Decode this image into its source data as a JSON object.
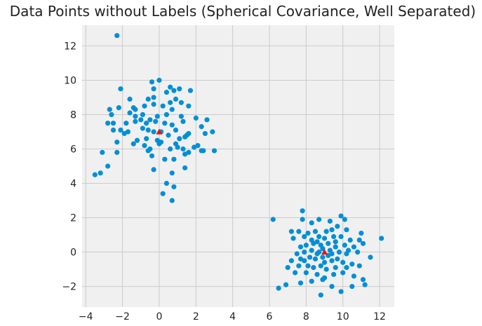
{
  "chart_data": {
    "type": "scatter",
    "title": "Data Points without Labels (Spherical Covariance, Well Separated)",
    "xlabel": "",
    "ylabel": "",
    "xlim": [
      -4.2,
      12.8
    ],
    "ylim": [
      -3.2,
      13.2
    ],
    "x_ticks": [
      -4,
      -2,
      0,
      2,
      4,
      6,
      8,
      10,
      12
    ],
    "y_ticks": [
      -2,
      0,
      2,
      4,
      6,
      8,
      10,
      12
    ],
    "x_tick_labels": [
      "−4",
      "−2",
      "0",
      "2",
      "4",
      "6",
      "8",
      "10",
      "12"
    ],
    "y_tick_labels": [
      "−2",
      "0",
      "2",
      "4",
      "6",
      "8",
      "10",
      "12"
    ],
    "grid": true,
    "colors": {
      "points": "#008fd5",
      "centers": "#e5141b",
      "grid": "#cbcbcb",
      "background": "#f0f0f0"
    },
    "series": [
      {
        "marker": "circle",
        "points": [
          [
            -2.3,
            12.6
          ],
          [
            -0.4,
            9.9
          ],
          [
            0.0,
            10.0
          ],
          [
            -2.1,
            9.5
          ],
          [
            0.6,
            9.6
          ],
          [
            1.1,
            9.5
          ],
          [
            1.7,
            9.4
          ],
          [
            -0.3,
            9.5
          ],
          [
            0.8,
            9.4
          ],
          [
            0.4,
            9.3
          ],
          [
            -1.6,
            8.9
          ],
          [
            -0.6,
            8.9
          ],
          [
            -0.3,
            9.0
          ],
          [
            0.9,
            8.9
          ],
          [
            1.2,
            8.7
          ],
          [
            0.6,
            8.7
          ],
          [
            -2.7,
            8.3
          ],
          [
            -2.6,
            8.0
          ],
          [
            -2.2,
            8.4
          ],
          [
            -1.4,
            8.4
          ],
          [
            -1.3,
            8.3
          ],
          [
            -0.8,
            8.5
          ],
          [
            -0.3,
            8.6
          ],
          [
            0.2,
            8.5
          ],
          [
            0.7,
            8.3
          ],
          [
            1.6,
            8.5
          ],
          [
            -1.6,
            8.1
          ],
          [
            -1.3,
            7.9
          ],
          [
            -0.9,
            8.0
          ],
          [
            -0.5,
            7.7
          ],
          [
            -0.1,
            7.9
          ],
          [
            0.4,
            8.0
          ],
          [
            1.2,
            7.9
          ],
          [
            2.0,
            7.8
          ],
          [
            2.6,
            7.7
          ],
          [
            -2.8,
            7.5
          ],
          [
            -2.5,
            7.5
          ],
          [
            -1.8,
            7.5
          ],
          [
            -1.3,
            7.6
          ],
          [
            -0.7,
            7.5
          ],
          [
            -0.2,
            7.6
          ],
          [
            0.3,
            7.5
          ],
          [
            0.7,
            7.4
          ],
          [
            1.3,
            7.6
          ],
          [
            2.3,
            7.3
          ],
          [
            -2.5,
            7.1
          ],
          [
            -2.1,
            7.1
          ],
          [
            -1.7,
            7.0
          ],
          [
            -0.9,
            7.2
          ],
          [
            -0.6,
            7.1
          ],
          [
            -0.3,
            7.0
          ],
          [
            0.1,
            7.0
          ],
          [
            0.5,
            6.8
          ],
          [
            0.9,
            7.1
          ],
          [
            1.6,
            6.9
          ],
          [
            2.5,
            6.9
          ],
          [
            2.9,
            7.0
          ],
          [
            -1.9,
            6.9
          ],
          [
            -1.2,
            6.5
          ],
          [
            -0.7,
            6.6
          ],
          [
            -0.1,
            6.5
          ],
          [
            0.1,
            6.4
          ],
          [
            1.1,
            6.6
          ],
          [
            1.4,
            6.7
          ],
          [
            2.1,
            6.2
          ],
          [
            -2.3,
            6.4
          ],
          [
            -1.4,
            6.3
          ],
          [
            -0.8,
            6.2
          ],
          [
            -0.5,
            6.0
          ],
          [
            0.6,
            6.0
          ],
          [
            1.0,
            6.1
          ],
          [
            1.3,
            6.0
          ],
          [
            1.9,
            6.1
          ],
          [
            2.4,
            5.9
          ],
          [
            3.0,
            5.9
          ],
          [
            -3.1,
            5.8
          ],
          [
            -2.3,
            5.8
          ],
          [
            -0.4,
            5.6
          ],
          [
            0.3,
            5.4
          ],
          [
            0.8,
            5.4
          ],
          [
            1.4,
            5.7
          ],
          [
            1.6,
            5.8
          ],
          [
            2.3,
            5.9
          ],
          [
            -0.3,
            4.8
          ],
          [
            1.4,
            4.9
          ],
          [
            0.7,
            4.6
          ],
          [
            -2.8,
            5.0
          ],
          [
            -3.5,
            4.5
          ],
          [
            -3.2,
            4.6
          ],
          [
            0.4,
            4.0
          ],
          [
            0.8,
            3.8
          ],
          [
            0.2,
            3.4
          ],
          [
            0.7,
            3.0
          ],
          [
            0.0,
            6.3
          ],
          [
            0.9,
            6.3
          ],
          [
            -1.0,
            7.7
          ],
          [
            1.5,
            6.8
          ],
          [
            -0.6,
            5.9
          ]
        ]
      },
      {
        "marker": "circle",
        "points": [
          [
            6.2,
            1.9
          ],
          [
            7.8,
            2.4
          ],
          [
            7.8,
            1.9
          ],
          [
            8.3,
            1.7
          ],
          [
            8.7,
            1.9
          ],
          [
            9.3,
            1.8
          ],
          [
            9.9,
            2.1
          ],
          [
            10.1,
            1.9
          ],
          [
            7.2,
            1.2
          ],
          [
            7.6,
            1.2
          ],
          [
            8.1,
            1.1
          ],
          [
            8.5,
            1.2
          ],
          [
            9.1,
            1.2
          ],
          [
            9.4,
            1.3
          ],
          [
            9.7,
            1.5
          ],
          [
            10.2,
            1.3
          ],
          [
            11.0,
            1.1
          ],
          [
            12.1,
            0.8
          ],
          [
            7.3,
            0.8
          ],
          [
            7.9,
            0.9
          ],
          [
            8.3,
            0.7
          ],
          [
            8.7,
            0.9
          ],
          [
            9.0,
            0.8
          ],
          [
            9.5,
            0.9
          ],
          [
            9.9,
            0.9
          ],
          [
            10.4,
            0.7
          ],
          [
            10.9,
            0.7
          ],
          [
            7.7,
            0.3
          ],
          [
            8.0,
            0.4
          ],
          [
            8.4,
            0.5
          ],
          [
            8.8,
            0.4
          ],
          [
            9.2,
            0.5
          ],
          [
            9.6,
            0.3
          ],
          [
            10.1,
            0.4
          ],
          [
            10.6,
            0.3
          ],
          [
            11.1,
            0.5
          ],
          [
            7.5,
            -0.1
          ],
          [
            7.9,
            0.0
          ],
          [
            8.3,
            0.1
          ],
          [
            8.6,
            -0.1
          ],
          [
            9.3,
            0.1
          ],
          [
            9.8,
            0.0
          ],
          [
            10.2,
            -0.1
          ],
          [
            10.8,
            0.0
          ],
          [
            7.2,
            -0.5
          ],
          [
            7.7,
            -0.4
          ],
          [
            8.2,
            -0.3
          ],
          [
            8.5,
            -0.4
          ],
          [
            8.9,
            -0.3
          ],
          [
            9.4,
            -0.5
          ],
          [
            9.7,
            -0.4
          ],
          [
            10.0,
            -0.6
          ],
          [
            10.5,
            -0.7
          ],
          [
            11.5,
            -0.3
          ],
          [
            7.0,
            -0.9
          ],
          [
            7.6,
            -0.8
          ],
          [
            8.1,
            -0.8
          ],
          [
            8.4,
            -0.9
          ],
          [
            8.8,
            -0.8
          ],
          [
            9.1,
            -1.0
          ],
          [
            9.6,
            -0.9
          ],
          [
            10.2,
            -0.9
          ],
          [
            10.9,
            -0.8
          ],
          [
            7.4,
            -1.2
          ],
          [
            8.0,
            -1.2
          ],
          [
            8.6,
            -1.3
          ],
          [
            9.0,
            -1.5
          ],
          [
            9.5,
            -1.3
          ],
          [
            10.0,
            -1.2
          ],
          [
            10.6,
            -1.4
          ],
          [
            11.1,
            -1.6
          ],
          [
            7.7,
            -1.8
          ],
          [
            8.3,
            -1.7
          ],
          [
            8.9,
            -1.6
          ],
          [
            9.4,
            -2.0
          ],
          [
            9.9,
            -2.3
          ],
          [
            10.5,
            -2.0
          ],
          [
            11.2,
            -1.9
          ],
          [
            6.5,
            -2.1
          ],
          [
            6.9,
            -1.9
          ],
          [
            8.8,
            -2.5
          ],
          [
            9.2,
            -0.2
          ],
          [
            8.9,
            0.2
          ],
          [
            9.4,
            -0.1
          ],
          [
            8.7,
            0.0
          ],
          [
            9.6,
            0.6
          ],
          [
            8.6,
            0.6
          ],
          [
            9.0,
            -0.6
          ],
          [
            10.3,
            0.1
          ],
          [
            7.9,
            -0.5
          ]
        ]
      },
      {
        "marker": "triangle",
        "points": [
          [
            0.0,
            7.0
          ],
          [
            9.0,
            0.0
          ]
        ]
      }
    ]
  }
}
